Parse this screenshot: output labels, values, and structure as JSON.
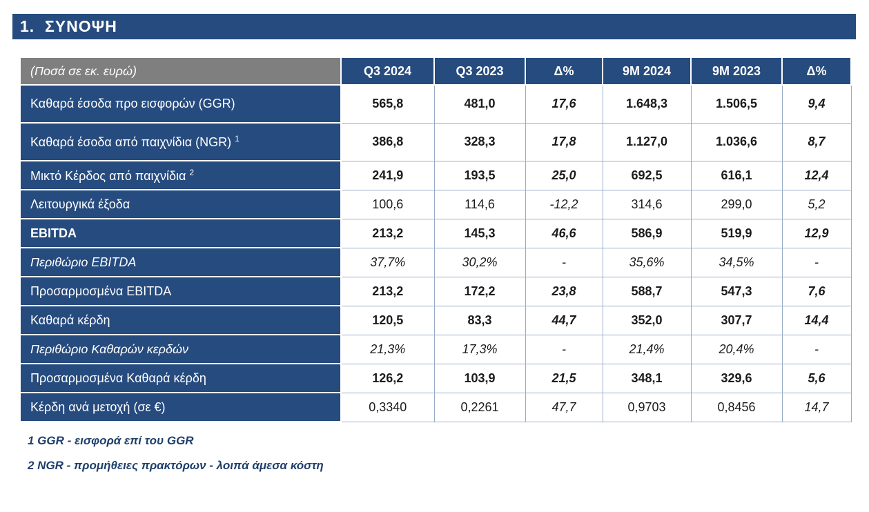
{
  "page": {
    "title": "1.  ΣΥΝΟΨΗ"
  },
  "colors": {
    "navy": "#264b7e",
    "gray_header": "#7f7f7f",
    "grid_line": "#97abc6",
    "footnote_text": "#1f3f6b"
  },
  "table": {
    "header": {
      "label": "(Ποσά σε εκ. ευρώ)",
      "columns": [
        "Q3 2024",
        "Q3 2023",
        "Δ%",
        "9M 2024",
        "9M 2023",
        "Δ%"
      ]
    },
    "rows": [
      {
        "label": "Καθαρά έσοδα προ εισφορών (GGR)",
        "sup": "",
        "values": [
          "565,8",
          "481,0",
          "17,6",
          "1.648,3",
          "1.506,5",
          "9,4"
        ],
        "values_bold": true,
        "values_italic": false,
        "label_bold": false,
        "label_italic": false
      },
      {
        "label": "Καθαρά έσοδα από παιχνίδια (NGR)",
        "sup": "1",
        "values": [
          "386,8",
          "328,3",
          "17,8",
          "1.127,0",
          "1.036,6",
          "8,7"
        ],
        "values_bold": true,
        "values_italic": false,
        "label_bold": false,
        "label_italic": false
      },
      {
        "label": "Μικτό Κέρδος από παιχνίδια",
        "sup": "2",
        "values": [
          "241,9",
          "193,5",
          "25,0",
          "692,5",
          "616,1",
          "12,4"
        ],
        "values_bold": true,
        "values_italic": false,
        "label_bold": false,
        "label_italic": false
      },
      {
        "label": "Λειτουργικά έξοδα",
        "sup": "",
        "values": [
          "100,6",
          "114,6",
          "-12,2",
          "314,6",
          "299,0",
          "5,2"
        ],
        "values_bold": false,
        "values_italic": false,
        "label_bold": false,
        "label_italic": false
      },
      {
        "label": "EBITDA",
        "sup": "",
        "values": [
          "213,2",
          "145,3",
          "46,6",
          "586,9",
          "519,9",
          "12,9"
        ],
        "values_bold": true,
        "values_italic": false,
        "label_bold": true,
        "label_italic": false
      },
      {
        "label": "Περιθώριο EBITDA",
        "sup": "",
        "values": [
          "37,7%",
          "30,2%",
          "-",
          "35,6%",
          "34,5%",
          "-"
        ],
        "values_bold": false,
        "values_italic": true,
        "label_bold": false,
        "label_italic": true
      },
      {
        "label": "Προσαρμοσμένα EBITDA",
        "sup": "",
        "values": [
          "213,2",
          "172,2",
          "23,8",
          "588,7",
          "547,3",
          "7,6"
        ],
        "values_bold": true,
        "values_italic": false,
        "label_bold": false,
        "label_italic": false
      },
      {
        "label": "Καθαρά κέρδη",
        "sup": "",
        "values": [
          "120,5",
          "83,3",
          "44,7",
          "352,0",
          "307,7",
          "14,4"
        ],
        "values_bold": true,
        "values_italic": false,
        "label_bold": false,
        "label_italic": false
      },
      {
        "label": "Περιθώριο Καθαρών κερδών",
        "sup": "",
        "values": [
          "21,3%",
          "17,3%",
          "-",
          "21,4%",
          "20,4%",
          "-"
        ],
        "values_bold": false,
        "values_italic": true,
        "label_bold": false,
        "label_italic": true
      },
      {
        "label": "Προσαρμοσμένα Καθαρά κέρδη",
        "sup": "",
        "values": [
          "126,2",
          "103,9",
          "21,5",
          "348,1",
          "329,6",
          "5,6"
        ],
        "values_bold": true,
        "values_italic": false,
        "label_bold": false,
        "label_italic": false
      },
      {
        "label": "Κέρδη ανά μετοχή (σε €)",
        "sup": "",
        "values": [
          "0,3340",
          "0,2261",
          "47,7",
          "0,9703",
          "0,8456",
          "14,7"
        ],
        "values_bold": false,
        "values_italic": false,
        "label_bold": false,
        "label_italic": false
      }
    ],
    "footnotes": [
      "1 GGR - εισφορά επί του GGR",
      "2 NGR - προμήθειες πρακτόρων - λοιπά άμεσα κόστη"
    ]
  }
}
